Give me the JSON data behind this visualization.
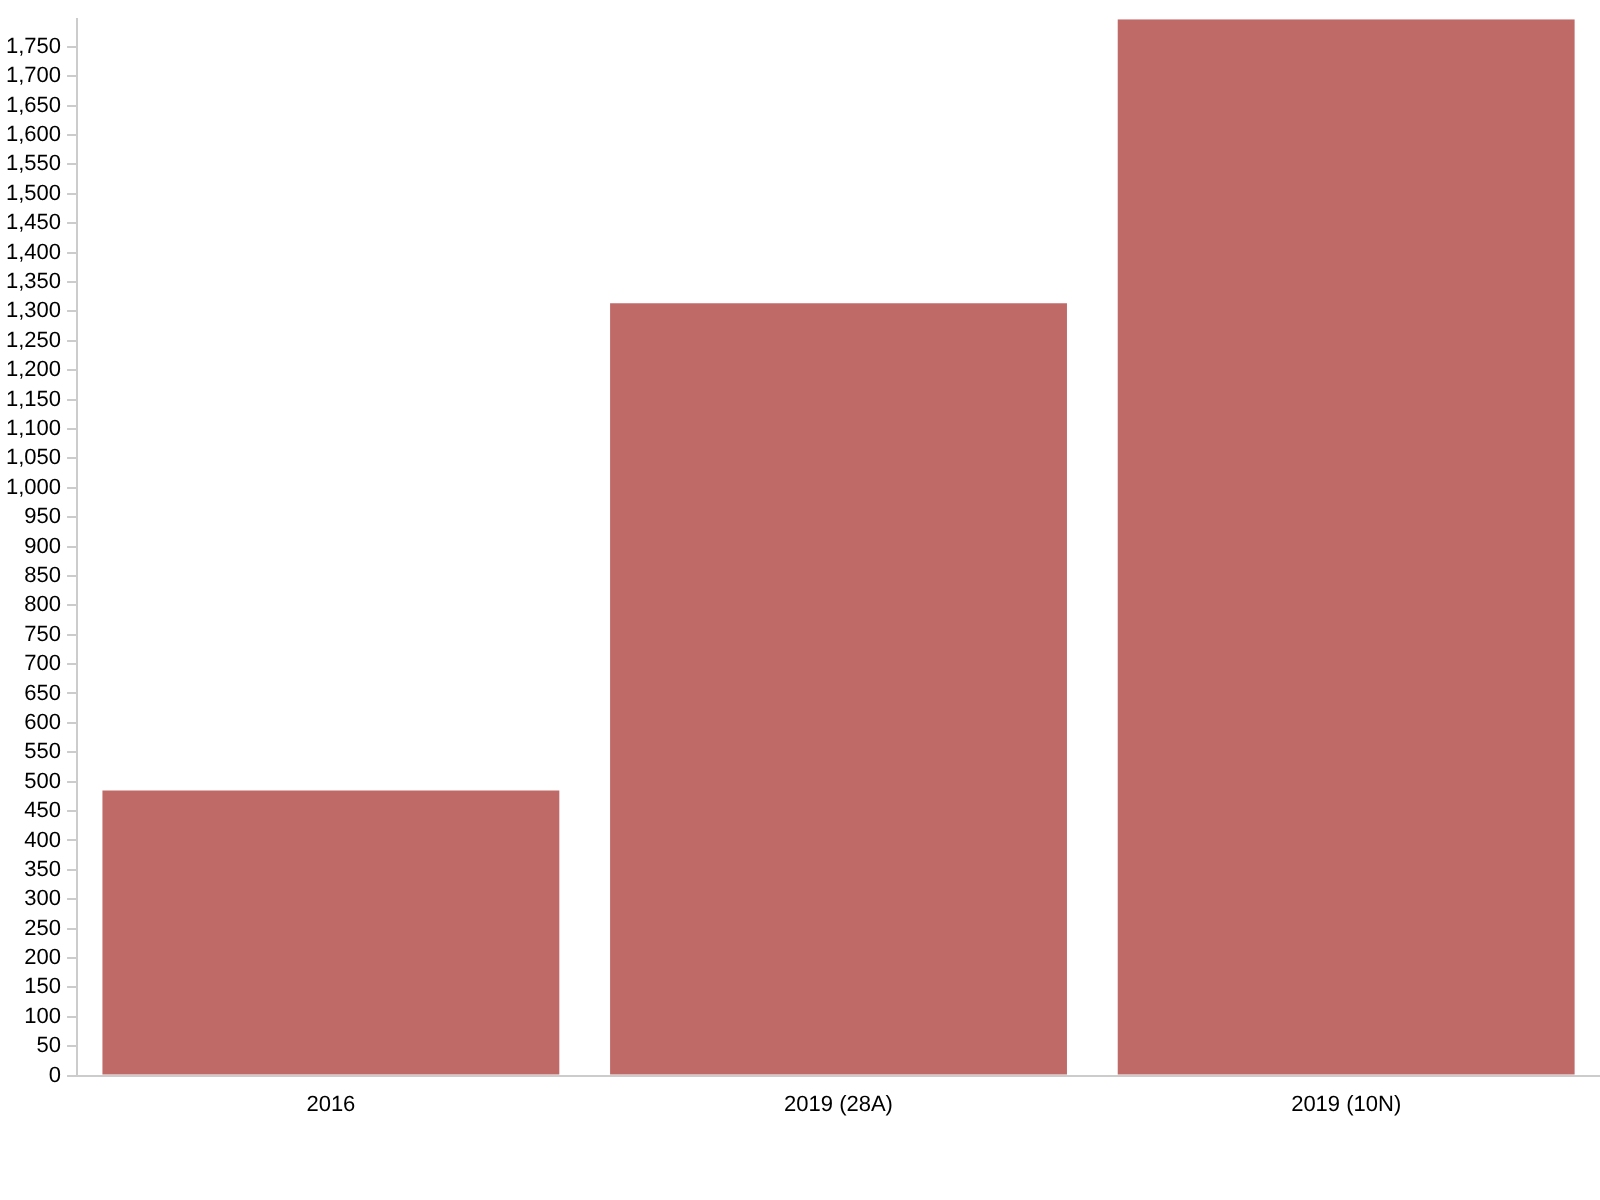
{
  "chart_data": {
    "type": "bar",
    "categories": [
      "2016",
      "2019 (28A)",
      "2019 (10N)"
    ],
    "values": [
      485,
      1314,
      1797
    ],
    "color": "#c06a68",
    "ylim": [
      0,
      1797
    ],
    "yticks": [
      0,
      50,
      100,
      150,
      200,
      250,
      300,
      350,
      400,
      450,
      500,
      550,
      600,
      650,
      700,
      750,
      800,
      850,
      900,
      950,
      {
        "value": 1000,
        "label": "1,000"
      },
      {
        "value": 1050,
        "label": "1,050"
      },
      {
        "value": 1100,
        "label": "1,100"
      },
      {
        "value": 1150,
        "label": "1,150"
      },
      {
        "value": 1200,
        "label": "1,200"
      },
      {
        "value": 1250,
        "label": "1,250"
      },
      {
        "value": 1300,
        "label": "1,300"
      },
      {
        "value": 1350,
        "label": "1,350"
      },
      {
        "value": 1400,
        "label": "1,400"
      },
      {
        "value": 1450,
        "label": "1,450"
      },
      {
        "value": 1500,
        "label": "1,500"
      },
      {
        "value": 1550,
        "label": "1,550"
      },
      {
        "value": 1600,
        "label": "1,600"
      },
      {
        "value": 1650,
        "label": "1,650"
      },
      {
        "value": 1700,
        "label": "1,700"
      },
      {
        "value": 1750,
        "label": "1,750"
      }
    ],
    "grid": false,
    "legend": false
  }
}
